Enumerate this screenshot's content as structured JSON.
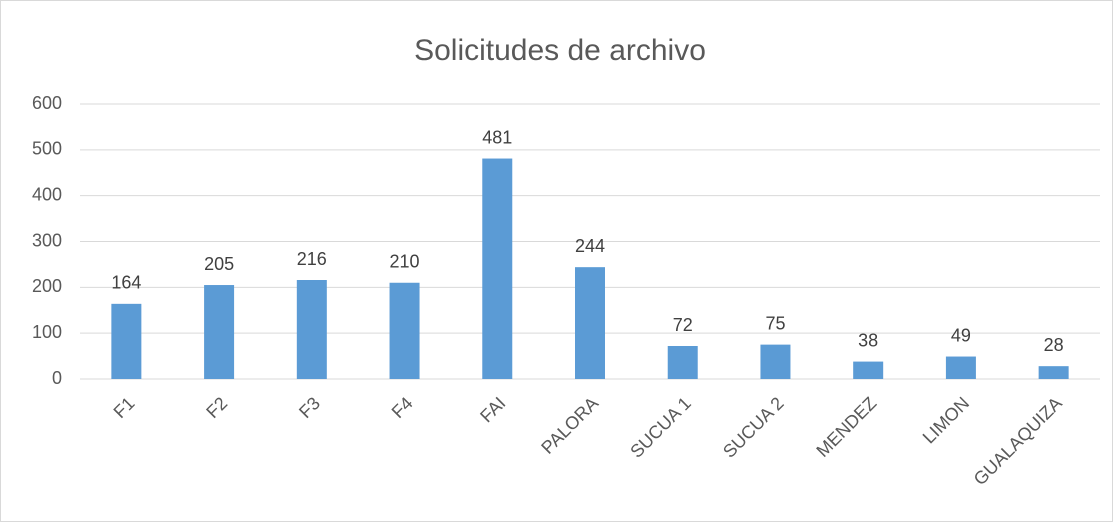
{
  "chart_data": {
    "type": "bar",
    "title": "Solicitudes de archivo",
    "categories": [
      "F1",
      "F2",
      "F3",
      "F4",
      "FAI",
      "PALORA",
      "SUCUA 1",
      "SUCUA 2",
      "MENDEZ",
      "LIMON",
      "GUALAQUIZA"
    ],
    "values": [
      164,
      205,
      216,
      210,
      481,
      244,
      72,
      75,
      38,
      49,
      28
    ],
    "color": "#5b9bd5",
    "ylim": [
      0,
      600
    ],
    "yticks": [
      0,
      100,
      200,
      300,
      400,
      500,
      600
    ],
    "grid": true
  }
}
